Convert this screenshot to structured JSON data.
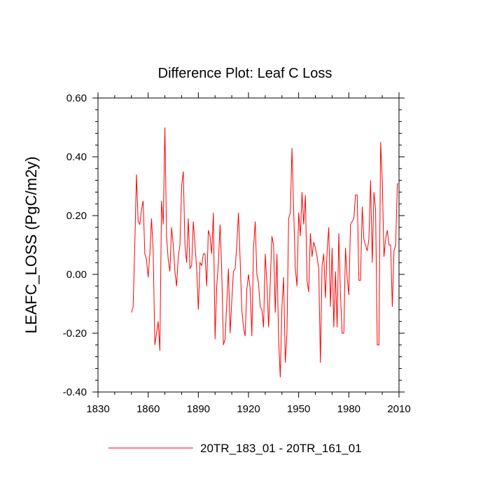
{
  "chart_data": {
    "type": "line",
    "title": "Difference Plot: Leaf C Loss",
    "xlabel": "",
    "ylabel": "LEAFC_LOSS  (PgC/m2y)",
    "xlim": [
      1830,
      2010
    ],
    "ylim": [
      -0.4,
      0.6
    ],
    "xticks": [
      1830,
      1860,
      1890,
      1920,
      1950,
      1980,
      2010
    ],
    "xtick_labels": [
      "1830",
      "1860",
      "1890",
      "1920",
      "1950",
      "1980",
      "2010"
    ],
    "yticks": [
      -0.4,
      -0.2,
      0.0,
      0.2,
      0.4,
      0.6
    ],
    "ytick_labels": [
      "-0.40",
      "-0.20",
      "0.00",
      "0.20",
      "0.40",
      "0.60"
    ],
    "legend_position": "bottom-center",
    "series": [
      {
        "name": "20TR_183_01 - 20TR_161_01",
        "color": "#ff0000",
        "x_start": 1850,
        "x_step": 1,
        "values": [
          -0.13,
          -0.11,
          0.1,
          0.34,
          0.18,
          0.17,
          0.22,
          0.25,
          0.07,
          0.05,
          -0.01,
          0.07,
          0.19,
          0.08,
          -0.24,
          -0.2,
          -0.16,
          -0.26,
          0.25,
          0.17,
          0.5,
          0.13,
          0.05,
          0.01,
          0.16,
          0.1,
          0.01,
          -0.04,
          0.06,
          0.1,
          0.3,
          0.35,
          0.1,
          0.04,
          0.19,
          0.02,
          0.03,
          0.18,
          0.1,
          0.02,
          -0.12,
          0.04,
          0.03,
          0.07,
          0.07,
          -0.04,
          0.15,
          0.13,
          0.07,
          0.21,
          -0.22,
          -0.04,
          0.04,
          0.17,
          0.01,
          -0.24,
          -0.22,
          -0.1,
          0.02,
          -0.2,
          -0.09,
          0.01,
          0.02,
          0.1,
          0.21,
          0.05,
          -0.12,
          -0.18,
          -0.21,
          -0.05,
          0.0,
          -0.05,
          -0.21,
          0.09,
          0.18,
          0.0,
          -0.03,
          -0.11,
          -0.12,
          -0.18,
          0.07,
          -0.03,
          -0.18,
          -0.03,
          0.13,
          0.1,
          -0.13,
          0.07,
          -0.22,
          -0.35,
          -0.11,
          -0.01,
          -0.3,
          -0.2,
          0.19,
          0.21,
          0.43,
          0.22,
          0.02,
          -0.04,
          0.21,
          0.13,
          0.28,
          0.17,
          0.27,
          -0.02,
          -0.06,
          0.14,
          0.06,
          0.11,
          0.09,
          0.06,
          0.02,
          -0.3,
          0.03,
          0.07,
          -0.08,
          0.08,
          0.16,
          -0.11,
          0.09,
          -0.18,
          0.01,
          -0.18,
          0.14,
          -0.07,
          -0.2,
          -0.2,
          0.09,
          -0.01,
          -0.07,
          0.17,
          0.18,
          0.19,
          0.27,
          0.27,
          -0.02,
          -0.02,
          0.23,
          0.12,
          0.1,
          0.08,
          0.12,
          0.32,
          0.04,
          0.28,
          0.22,
          -0.24,
          -0.24,
          0.45,
          0.32,
          0.06,
          0.12,
          0.15,
          0.1,
          0.1,
          -0.11,
          0.08,
          0.1,
          0.31
        ]
      }
    ]
  }
}
